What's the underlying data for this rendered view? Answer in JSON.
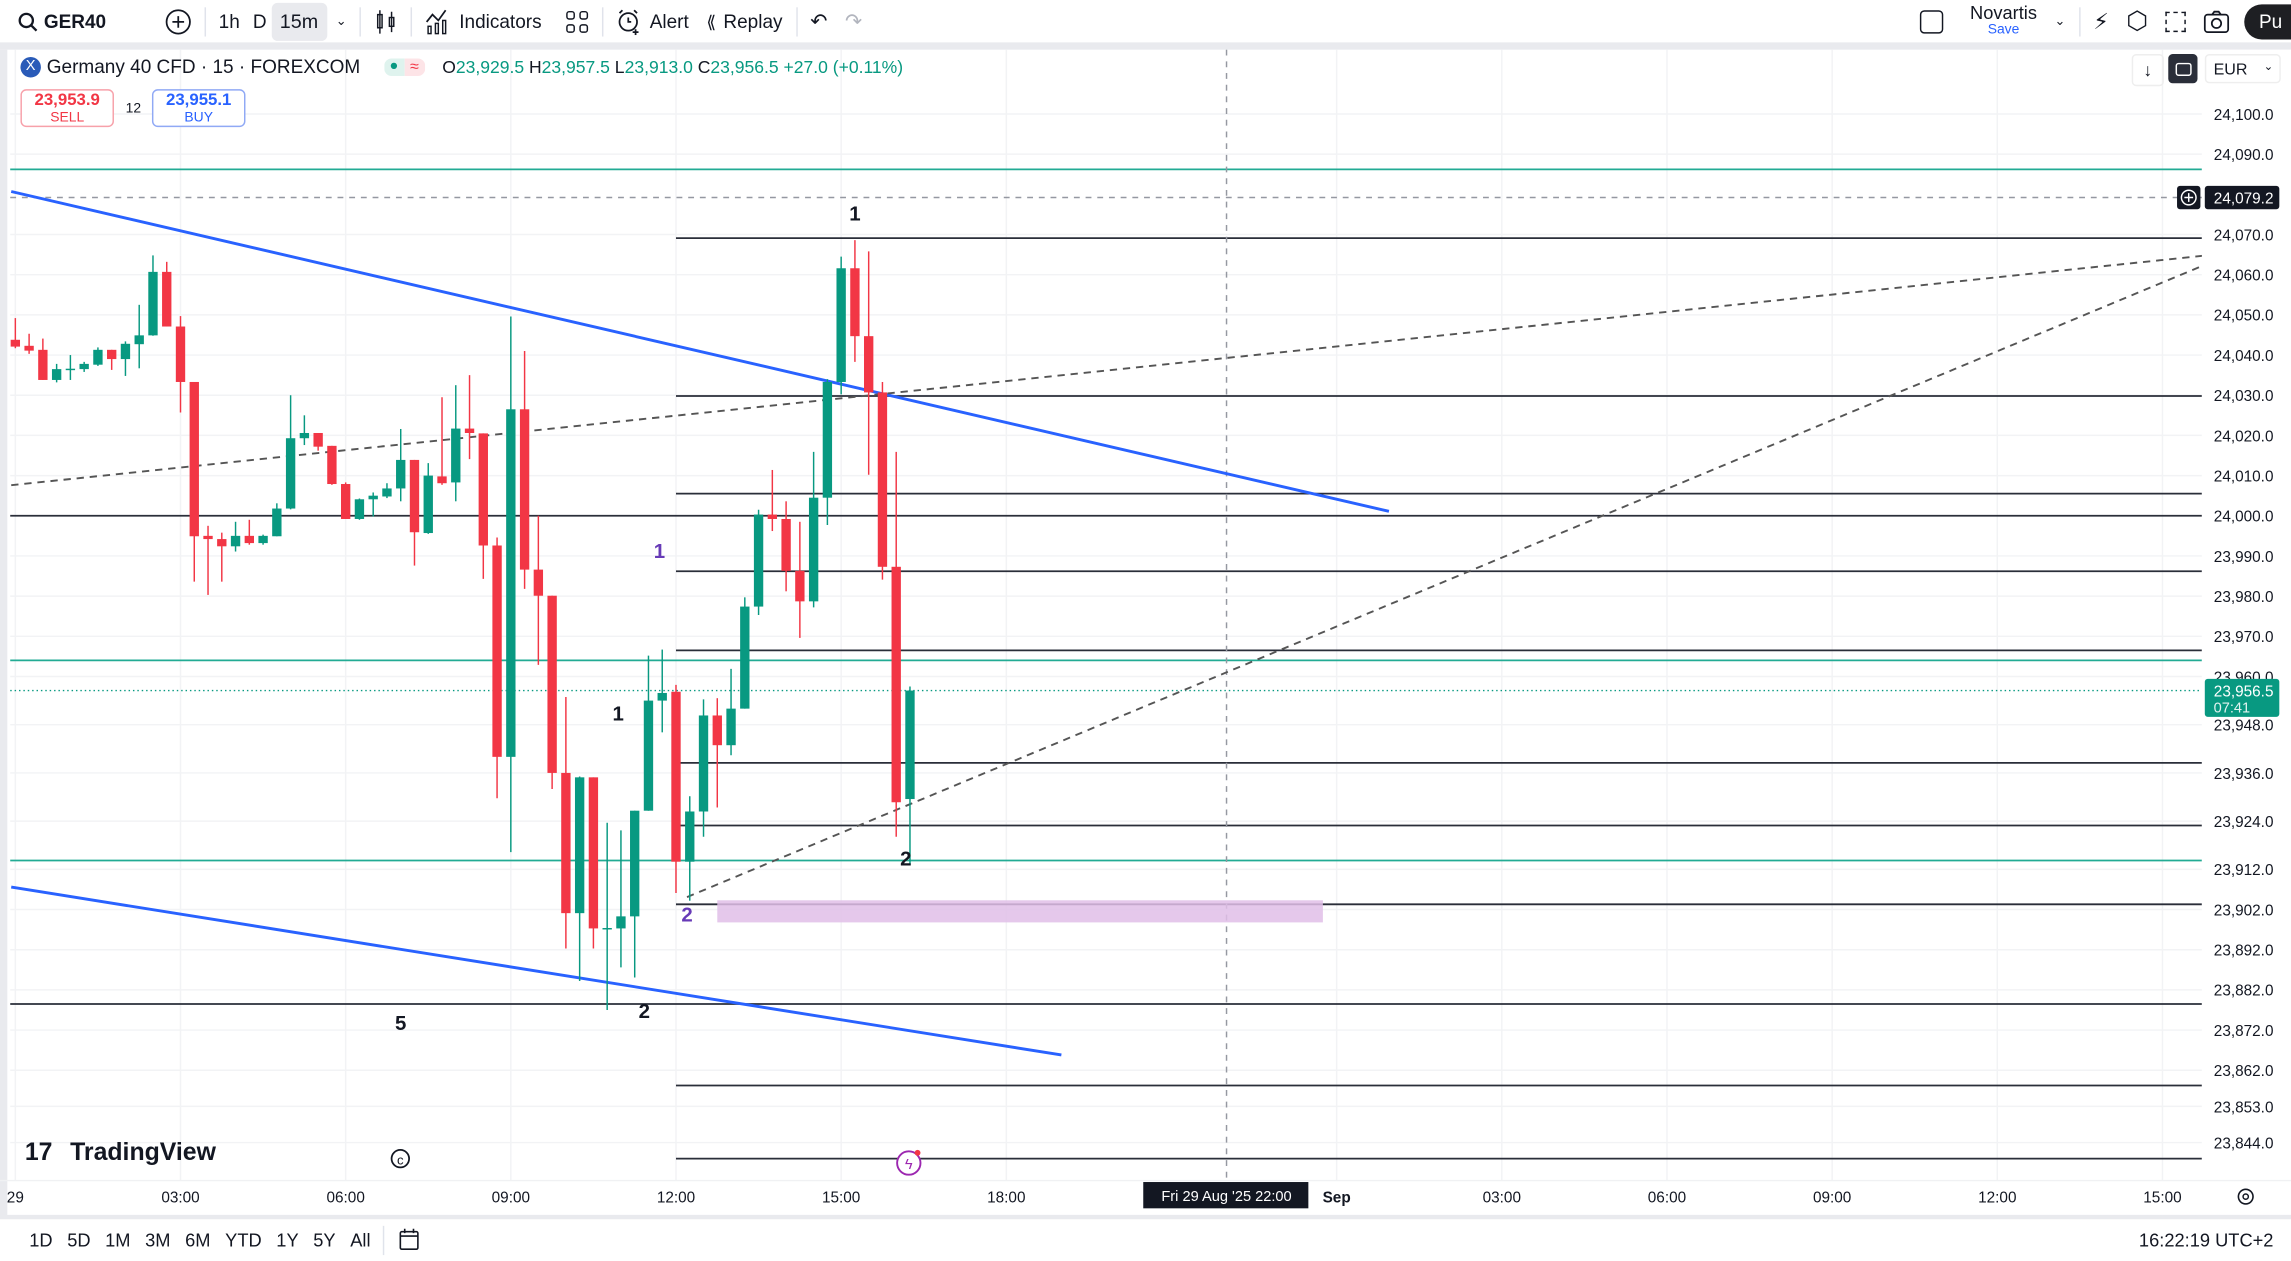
{
  "toolbar": {
    "symbol": "GER40",
    "intervals": [
      "1h",
      "D",
      "15m"
    ],
    "active_interval": "15m",
    "indicators_label": "Indicators",
    "alert_label": "Alert",
    "replay_label": "Replay",
    "layout_name": "Novartis",
    "layout_save": "Save",
    "publish_label": "Pu"
  },
  "legend": {
    "title": "Germany 40 CFD · 15 · FOREXCOM",
    "o_label": "O",
    "o": "23,929.5",
    "h_label": "H",
    "h": "23,957.5",
    "l_label": "L",
    "l": "23,913.0",
    "c_label": "C",
    "c": "23,956.5",
    "change": "+27.0 (+0.11%)",
    "sell_price": "23,953.9",
    "sell_label": "SELL",
    "spread": "12",
    "buy_price": "23,955.1",
    "buy_label": "BUY"
  },
  "currency": "EUR",
  "crosshair": {
    "price_label": "24,079.2",
    "price": 24079.2,
    "time_label": "Fri 29 Aug '25   22:00",
    "bar": 88
  },
  "last_price": {
    "label": "23,956.5",
    "countdown": "07:41",
    "price": 23956.5
  },
  "footer": {
    "ranges": [
      "1D",
      "5D",
      "1M",
      "3M",
      "6M",
      "YTD",
      "1Y",
      "5Y",
      "All"
    ],
    "clock": "16:22:19 UTC+2",
    "logo": "TradingView"
  },
  "colors": {
    "up": "#089981",
    "down": "#f23645",
    "trend": "#2962ff",
    "level": "#2a2e39",
    "teal": "#22ab94",
    "zone": "#e1bee7"
  },
  "chart_data": {
    "type": "candlestick",
    "interval": "15m",
    "start": "Fri 29 Aug 00:00",
    "ylim": [
      23838,
      24110
    ],
    "price_ticks": [
      24100,
      24090,
      24070,
      24060,
      24050,
      24040,
      24030,
      24020,
      24010,
      24000,
      23990,
      23980,
      23970,
      23960,
      23948,
      23936,
      23924,
      23912,
      23902,
      23892,
      23882,
      23872,
      23862,
      23853,
      23844
    ],
    "price_tick_labels": [
      "24,100.0",
      "24,090.0",
      "24,070.0",
      "24,060.0",
      "24,050.0",
      "24,040.0",
      "24,030.0",
      "24,020.0",
      "24,010.0",
      "24,000.0",
      "23,990.0",
      "23,980.0",
      "23,970.0",
      "23,960.0",
      "23,948.0",
      "23,936.0",
      "23,924.0",
      "23,912.0",
      "23,902.0",
      "23,892.0",
      "23,882.0",
      "23,872.0",
      "23,862.0",
      "23,853.0",
      "23,844.0"
    ],
    "time_ticks": [
      {
        "bar": 0,
        "label": "29",
        "bold": false
      },
      {
        "bar": 12,
        "label": "03:00",
        "bold": false
      },
      {
        "bar": 24,
        "label": "06:00",
        "bold": false
      },
      {
        "bar": 36,
        "label": "09:00",
        "bold": false
      },
      {
        "bar": 48,
        "label": "12:00",
        "bold": false
      },
      {
        "bar": 60,
        "label": "15:00",
        "bold": false
      },
      {
        "bar": 72,
        "label": "18:00",
        "bold": false
      },
      {
        "bar": 96,
        "label": "Sep",
        "bold": true
      },
      {
        "bar": 108,
        "label": "03:00",
        "bold": false
      },
      {
        "bar": 120,
        "label": "06:00",
        "bold": false
      },
      {
        "bar": 132,
        "label": "09:00",
        "bold": false
      },
      {
        "bar": 144,
        "label": "12:00",
        "bold": false
      },
      {
        "bar": 156,
        "label": "15:00",
        "bold": false
      }
    ],
    "ohlc": [
      [
        24043.8,
        24049.2,
        24041.7,
        24042.1
      ],
      [
        24042.3,
        24045.3,
        24040.3,
        24041.1
      ],
      [
        24041.3,
        24044.1,
        24033.8,
        24033.8
      ],
      [
        24033.8,
        24037.8,
        24033.2,
        24036.5
      ],
      [
        24036.5,
        24040.0,
        24033.8,
        24036.6
      ],
      [
        24036.5,
        24038.3,
        24035.8,
        24037.8
      ],
      [
        24037.6,
        24041.9,
        24037.3,
        24041.3
      ],
      [
        24041.3,
        24041.3,
        24036.3,
        24039.0
      ],
      [
        24039.0,
        24043.4,
        24034.8,
        24042.8
      ],
      [
        24042.7,
        24052.5,
        24036.7,
        24044.9
      ],
      [
        24044.9,
        24064.8,
        24044.8,
        24060.7
      ],
      [
        24060.7,
        24063.2,
        24047.1,
        24047.1
      ],
      [
        24047.1,
        24049.7,
        24025.7,
        24033.3
      ],
      [
        24033.3,
        24033.3,
        23983.6,
        23994.9
      ],
      [
        23995.0,
        23997.5,
        23980.3,
        23994.2
      ],
      [
        23994.2,
        23995.8,
        23983.6,
        23992.4
      ],
      [
        23992.4,
        23998.5,
        23991.1,
        23995.0
      ],
      [
        23995.0,
        23999.0,
        23992.8,
        23993.2
      ],
      [
        23993.2,
        23995.3,
        23992.8,
        23995.0
      ],
      [
        23994.9,
        24003.1,
        23994.9,
        24001.8
      ],
      [
        24001.8,
        24030.0,
        24001.6,
        24019.3
      ],
      [
        24019.3,
        24025.0,
        24017.6,
        24020.6
      ],
      [
        24020.6,
        24020.6,
        24016.2,
        24017.2
      ],
      [
        24017.4,
        24017.4,
        24007.7,
        24007.9
      ],
      [
        24007.9,
        24008.3,
        23999.2,
        23999.2
      ],
      [
        23999.2,
        24004.3,
        23999.0,
        24004.1
      ],
      [
        24004.1,
        24005.8,
        23999.8,
        24005.0
      ],
      [
        24004.8,
        24008.1,
        24004.4,
        24006.8
      ],
      [
        24006.8,
        24021.6,
        24003.6,
        24013.9
      ],
      [
        24013.9,
        24013.9,
        23987.6,
        23995.9
      ],
      [
        23995.7,
        24013.1,
        23995.5,
        24010.0
      ],
      [
        24009.8,
        24029.5,
        24007.7,
        24008.1
      ],
      [
        24008.3,
        24032.5,
        24003.6,
        24021.7
      ],
      [
        24021.7,
        24035.0,
        24014.1,
        24020.6
      ],
      [
        24020.5,
        24020.5,
        23984.3,
        23992.6
      ],
      [
        23992.6,
        23994.6,
        23929.7,
        23940.0
      ],
      [
        23940.0,
        24049.6,
        23916.3,
        24026.5
      ],
      [
        24026.5,
        24041.0,
        23981.8,
        23986.6
      ],
      [
        23986.6,
        24000.0,
        23962.9,
        23980.1
      ],
      [
        23980.1,
        23980.1,
        23932.0,
        23936.0
      ],
      [
        23936.0,
        23954.9,
        23892.3,
        23901.1
      ],
      [
        23901.1,
        23935.1,
        23884.2,
        23934.9
      ],
      [
        23934.9,
        23934.9,
        23892.3,
        23897.3
      ],
      [
        23897.3,
        23923.6,
        23877.0,
        23897.4
      ],
      [
        23897.3,
        23921.7,
        23887.6,
        23900.3
      ],
      [
        23900.3,
        23926.6,
        23885.1,
        23926.6
      ],
      [
        23926.6,
        23965.2,
        23926.6,
        23954.0
      ],
      [
        23954.0,
        23966.7,
        23946.1,
        23955.9
      ],
      [
        23956.2,
        23957.9,
        23906.1,
        23913.9
      ],
      [
        23913.9,
        23930.2,
        23904.2,
        23926.4
      ],
      [
        23926.4,
        23954.3,
        23920.1,
        23950.3
      ],
      [
        23950.3,
        23954.6,
        23927.4,
        23942.9
      ],
      [
        23942.9,
        23961.9,
        23940.4,
        23952.0
      ],
      [
        23952.0,
        23979.7,
        23952.0,
        23977.4
      ],
      [
        23977.4,
        24001.5,
        23975.3,
        24000.3
      ],
      [
        24000.3,
        24011.4,
        23996.2,
        23999.2
      ],
      [
        23999.2,
        24003.6,
        23981.2,
        23986.3
      ],
      [
        23986.3,
        23998.5,
        23969.6,
        23978.7
      ],
      [
        23978.7,
        24015.9,
        23977.2,
        24004.5
      ],
      [
        24004.5,
        24034.0,
        23997.7,
        24033.3
      ],
      [
        24033.3,
        24064.5,
        24030.2,
        24061.6
      ],
      [
        24061.6,
        24068.6,
        24038.3,
        24044.7
      ],
      [
        24044.7,
        24065.8,
        24010.2,
        24030.7
      ],
      [
        24030.7,
        24033.3,
        23984.1,
        23987.3
      ],
      [
        23987.3,
        24015.9,
        23920.1,
        23928.7
      ],
      [
        23929.5,
        23957.5,
        23913.0,
        23956.5
      ]
    ],
    "levels_black_full": [
      24000.0,
      23878.5
    ],
    "levels_black_from_noon": [
      24069.1,
      24029.8,
      24005.5,
      23986.2,
      23966.5,
      23938.5,
      23922.9,
      23903.3,
      23858.2,
      23840.0
    ],
    "levels_teal": [
      24086.2,
      23964.0,
      23914.2
    ],
    "trendlines_blue": [
      [
        [
          -0.3,
          24080.7
        ],
        [
          99.8,
          24001.1
        ]
      ],
      [
        [
          -0.3,
          23907.6
        ],
        [
          76.0,
          23865.8
        ]
      ]
    ],
    "trendlines_dashed": [
      [
        [
          -0.3,
          24007.6
        ],
        [
          158.9,
          24064.7
        ]
      ],
      [
        [
          48.8,
          23905.1
        ],
        [
          158.9,
          24062.2
        ]
      ]
    ],
    "zone": {
      "from_bar": 51,
      "to_bar": 95,
      "top": 23904.3,
      "bottom": 23898.8
    },
    "annotations": [
      {
        "bar": 61.0,
        "price": 24073.5,
        "text": "1",
        "color": "#131722"
      },
      {
        "bar": 46.8,
        "price": 23989.5,
        "text": "1",
        "color": "#673ab7"
      },
      {
        "bar": 43.8,
        "price": 23949.0,
        "text": "1",
        "color": "#131722"
      },
      {
        "bar": 64.7,
        "price": 23913.0,
        "text": "2",
        "color": "#131722"
      },
      {
        "bar": 48.8,
        "price": 23899.0,
        "text": "2",
        "color": "#673ab7"
      },
      {
        "bar": 45.7,
        "price": 23875.0,
        "text": "2",
        "color": "#131722"
      },
      {
        "bar": 28.0,
        "price": 23872.0,
        "text": "5",
        "color": "#131722"
      }
    ]
  }
}
